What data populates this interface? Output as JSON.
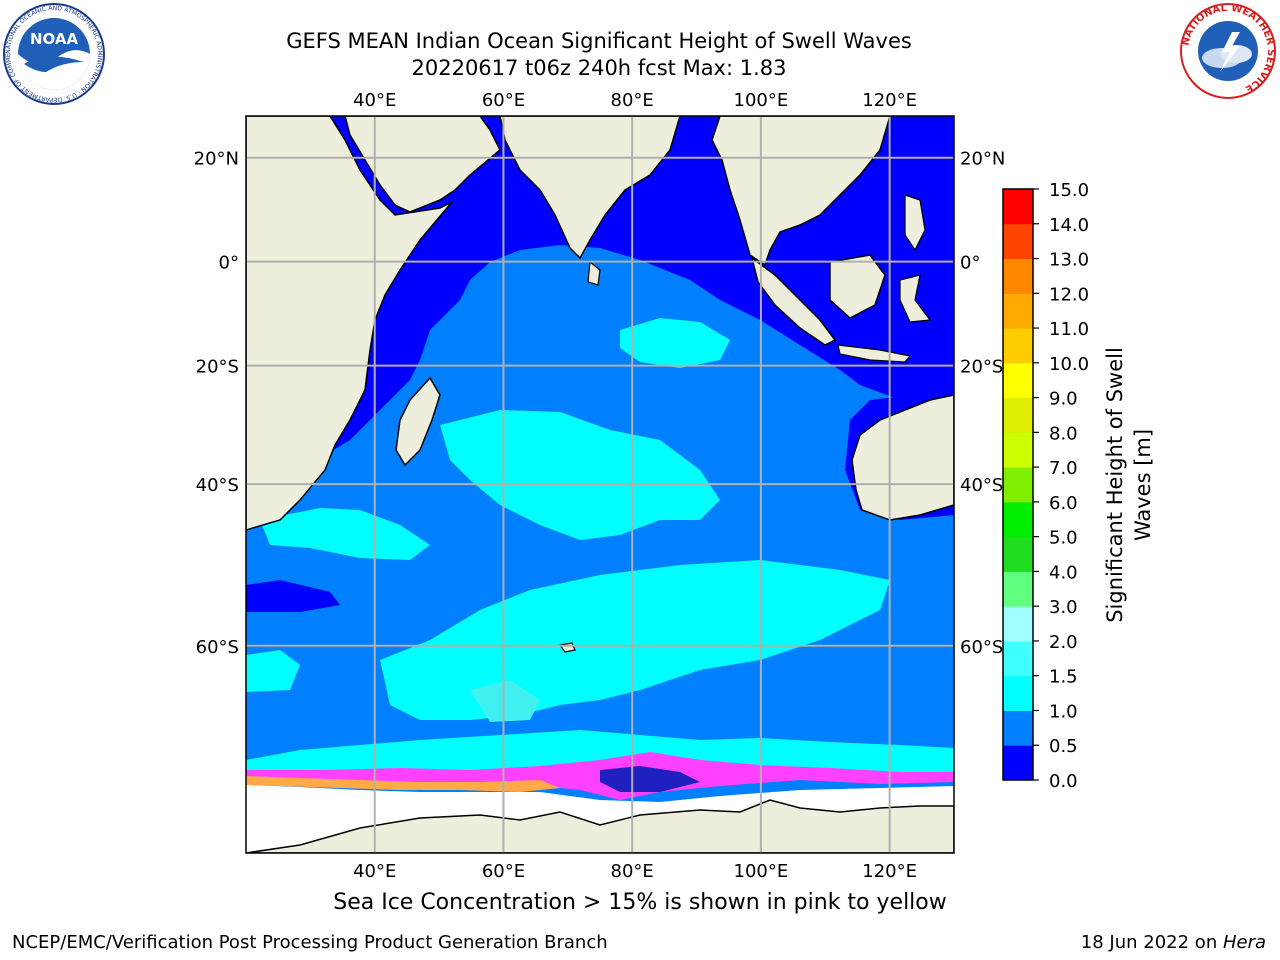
{
  "title": {
    "line1": "GEFS MEAN Indian Ocean Significant Height of Swell Waves",
    "line2": "20220617 t06z 240h fcst   Max: 1.83"
  },
  "map": {
    "lon_labels": [
      "40°E",
      "60°E",
      "80°E",
      "100°E",
      "120°E"
    ],
    "lat_labels": [
      "20°N",
      "0°",
      "20°S",
      "40°S",
      "60°S"
    ],
    "lon_values": [
      40,
      60,
      80,
      100,
      120
    ],
    "lat_values": [
      20,
      0,
      -20,
      -40,
      -60
    ],
    "extent": {
      "lon_min": 20,
      "lon_max": 130,
      "lat_min": -75,
      "lat_max": 27.5
    },
    "colors": {
      "land": "#eeeedd",
      "ocean_low": "#0000ff",
      "ocean_mid": "#0080ff",
      "ocean_high": "#00ffff",
      "ocean_higher": "#40f0f0",
      "ice": "#ff40ff",
      "grid": "#b0b0b0"
    }
  },
  "colorbar": {
    "label_line1": "Significant Height of Swell",
    "label_line2": "Waves [m]",
    "ticks": [
      "0.0",
      "0.5",
      "1.0",
      "1.5",
      "2.0",
      "3.0",
      "4.0",
      "5.0",
      "6.0",
      "7.0",
      "8.0",
      "9.0",
      "10.0",
      "11.0",
      "12.0",
      "13.0",
      "14.0",
      "15.0"
    ],
    "colors": [
      "#0000ff",
      "#0080ff",
      "#00ffff",
      "#40ffff",
      "#a0ffff",
      "#60ff80",
      "#20dd20",
      "#00ee00",
      "#80ee00",
      "#ccff00",
      "#ddee00",
      "#ffff00",
      "#ffcc00",
      "#ffaa00",
      "#ff8800",
      "#ff4400",
      "#ff0000"
    ]
  },
  "caption": "Sea Ice Concentration > 15% is shown in pink to yellow",
  "footer": {
    "left": "NCEP/EMC/Verification Post Processing Product Generation Branch",
    "right_date": "18 Jun 2022 on ",
    "right_host": "Hera"
  },
  "logos": {
    "noaa_text": "NOAA",
    "noaa_ring": "NATIONAL OCEANIC AND ATMOSPHERIC ADMINISTRATION · U.S. DEPARTMENT OF COMMERCE",
    "nws_ring": "NATIONAL WEATHER SERVICE"
  }
}
